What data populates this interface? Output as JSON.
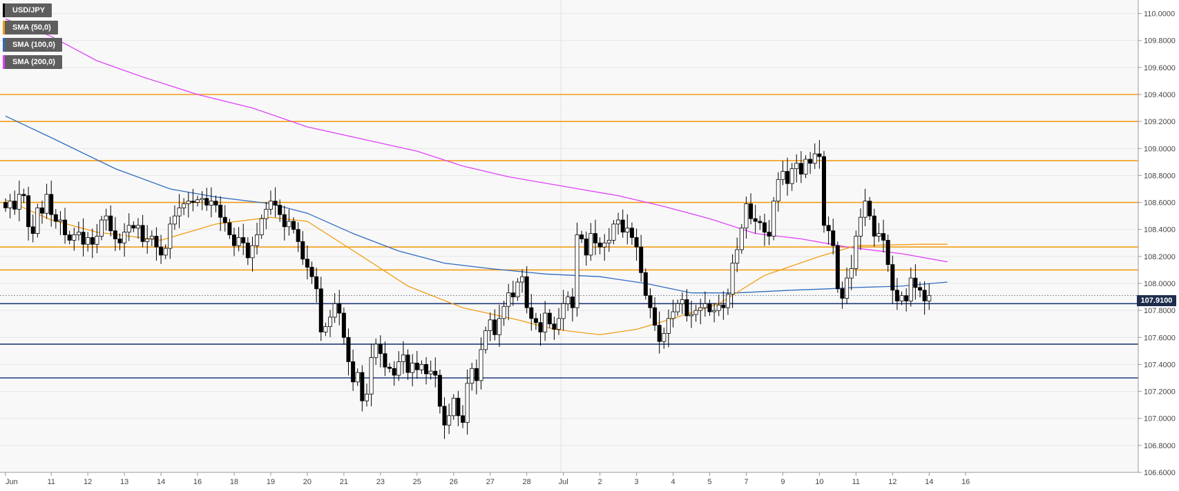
{
  "chart_data": {
    "type": "candlestick",
    "symbol": "USD/JPY",
    "ylim": [
      106.6,
      110.1
    ],
    "y_ticks": [
      "110.0000",
      "109.8000",
      "109.6000",
      "109.4000",
      "109.2000",
      "109.0000",
      "108.8000",
      "108.6000",
      "108.4000",
      "108.2000",
      "108.0000",
      "107.8000",
      "107.6000",
      "107.4000",
      "107.2000",
      "107.0000",
      "106.8000",
      "106.6000"
    ],
    "x_ticks": [
      {
        "label": "Jun",
        "bar": 0
      },
      {
        "label": "11",
        "bar": 10
      },
      {
        "label": "12",
        "bar": 18
      },
      {
        "label": "13",
        "bar": 26
      },
      {
        "label": "14",
        "bar": 34
      },
      {
        "label": "16",
        "bar": 42
      },
      {
        "label": "18",
        "bar": 50
      },
      {
        "label": "19",
        "bar": 58
      },
      {
        "label": "20",
        "bar": 66
      },
      {
        "label": "21",
        "bar": 74
      },
      {
        "label": "23",
        "bar": 82
      },
      {
        "label": "25",
        "bar": 90
      },
      {
        "label": "26",
        "bar": 98
      },
      {
        "label": "27",
        "bar": 106
      },
      {
        "label": "28",
        "bar": 114
      },
      {
        "label": "Jul",
        "bar": 122
      },
      {
        "label": "2",
        "bar": 130
      },
      {
        "label": "3",
        "bar": 138
      },
      {
        "label": "4",
        "bar": 146
      },
      {
        "label": "5",
        "bar": 154
      },
      {
        "label": "7",
        "bar": 162
      },
      {
        "label": "9",
        "bar": 170
      },
      {
        "label": "10",
        "bar": 178
      },
      {
        "label": "11",
        "bar": 186
      },
      {
        "label": "12",
        "bar": 194
      },
      {
        "label": "14",
        "bar": 202
      },
      {
        "label": "16",
        "bar": 210
      }
    ],
    "day_separators": [
      122
    ],
    "legend": [
      {
        "label": "USD/JPY",
        "color": "#000000"
      },
      {
        "label": "SMA (50,0)",
        "color": "#f39c12"
      },
      {
        "label": "SMA (100,0)",
        "color": "#2e6bbf"
      },
      {
        "label": "SMA (200,0)",
        "color": "#e040fb"
      }
    ],
    "last_price": "107.9100",
    "resistance_levels": [
      109.4,
      109.2,
      108.91,
      108.6,
      108.27,
      108.1
    ],
    "support_levels": [
      107.85,
      107.55,
      107.3
    ],
    "resistance_color": "#f39c12",
    "support_color": "#1f3a7a",
    "up_color": "#ffffff",
    "down_color": "#000000",
    "closes": [
      108.56,
      108.61,
      108.55,
      108.66,
      108.65,
      108.42,
      108.37,
      108.56,
      108.52,
      108.66,
      108.51,
      108.46,
      108.47,
      108.36,
      108.32,
      108.36,
      108.38,
      108.29,
      108.34,
      108.29,
      108.35,
      108.47,
      108.5,
      108.39,
      108.33,
      108.3,
      108.38,
      108.43,
      108.41,
      108.43,
      108.31,
      108.33,
      108.35,
      108.27,
      108.21,
      108.26,
      108.44,
      108.5,
      108.56,
      108.59,
      108.61,
      108.6,
      108.62,
      108.63,
      108.58,
      108.61,
      108.58,
      108.49,
      108.45,
      108.36,
      108.28,
      108.34,
      108.3,
      108.19,
      108.28,
      108.36,
      108.48,
      108.55,
      108.61,
      108.58,
      108.51,
      108.42,
      108.46,
      108.4,
      108.31,
      108.18,
      108.12,
      108.05,
      107.96,
      107.64,
      107.68,
      107.75,
      107.85,
      107.78,
      107.6,
      107.42,
      107.27,
      107.34,
      107.13,
      107.18,
      107.45,
      107.55,
      107.48,
      107.38,
      107.37,
      107.32,
      107.42,
      107.47,
      107.34,
      107.41,
      107.36,
      107.4,
      107.33,
      107.35,
      107.32,
      107.09,
      106.95,
      107.02,
      107.15,
      107.02,
      106.97,
      107.26,
      107.37,
      107.28,
      107.51,
      107.65,
      107.73,
      107.62,
      107.74,
      107.83,
      107.93,
      107.9,
      108.01,
      108.05,
      107.82,
      107.74,
      107.71,
      107.64,
      107.78,
      107.7,
      107.66,
      107.74,
      107.85,
      107.9,
      107.82,
      108.36,
      108.33,
      108.21,
      108.37,
      108.3,
      108.27,
      108.3,
      108.32,
      108.44,
      108.47,
      108.38,
      108.41,
      108.34,
      108.27,
      108.08,
      107.91,
      107.82,
      107.69,
      107.57,
      107.63,
      107.74,
      107.79,
      107.85,
      107.88,
      107.76,
      107.77,
      107.8,
      107.82,
      107.85,
      107.79,
      107.8,
      107.84,
      107.82,
      107.92,
      108.15,
      108.25,
      108.41,
      108.59,
      108.48,
      108.46,
      108.45,
      108.38,
      108.35,
      108.61,
      108.77,
      108.83,
      108.74,
      108.85,
      108.89,
      108.81,
      108.92,
      108.89,
      108.96,
      108.94,
      108.43,
      108.39,
      108.28,
      107.96,
      107.89,
      108.04,
      108.11,
      108.35,
      108.49,
      108.61,
      108.5,
      108.35,
      108.37,
      108.32,
      108.14,
      107.95,
      107.87,
      107.91,
      107.87,
      108.04,
      107.97,
      107.95,
      107.87,
      107.91
    ],
    "sma50": [
      [
        0,
        108.62
      ],
      [
        10,
        108.47
      ],
      [
        20,
        108.38
      ],
      [
        34,
        108.32
      ],
      [
        46,
        108.44
      ],
      [
        58,
        108.49
      ],
      [
        66,
        108.46
      ],
      [
        78,
        108.2
      ],
      [
        88,
        107.98
      ],
      [
        100,
        107.82
      ],
      [
        112,
        107.73
      ],
      [
        120,
        107.66
      ],
      [
        130,
        107.62
      ],
      [
        138,
        107.66
      ],
      [
        146,
        107.74
      ],
      [
        156,
        107.85
      ],
      [
        166,
        108.06
      ],
      [
        178,
        108.2
      ],
      [
        186,
        108.28
      ],
      [
        200,
        108.29
      ],
      [
        206,
        108.29
      ]
    ],
    "sma100": [
      [
        0,
        109.24
      ],
      [
        10,
        109.08
      ],
      [
        24,
        108.85
      ],
      [
        36,
        108.7
      ],
      [
        46,
        108.64
      ],
      [
        58,
        108.59
      ],
      [
        66,
        108.52
      ],
      [
        76,
        108.37
      ],
      [
        86,
        108.24
      ],
      [
        96,
        108.15
      ],
      [
        106,
        108.11
      ],
      [
        118,
        108.07
      ],
      [
        130,
        108.05
      ],
      [
        140,
        108.0
      ],
      [
        150,
        107.93
      ],
      [
        160,
        107.93
      ],
      [
        172,
        107.95
      ],
      [
        180,
        107.96
      ],
      [
        186,
        107.97
      ],
      [
        196,
        107.98
      ],
      [
        206,
        108.01
      ]
    ],
    "sma200": [
      [
        0,
        109.96
      ],
      [
        10,
        109.83
      ],
      [
        20,
        109.65
      ],
      [
        30,
        109.53
      ],
      [
        42,
        109.4
      ],
      [
        54,
        109.3
      ],
      [
        66,
        109.16
      ],
      [
        78,
        109.07
      ],
      [
        90,
        108.98
      ],
      [
        100,
        108.87
      ],
      [
        110,
        108.79
      ],
      [
        122,
        108.72
      ],
      [
        134,
        108.65
      ],
      [
        144,
        108.57
      ],
      [
        154,
        108.48
      ],
      [
        164,
        108.37
      ],
      [
        174,
        108.33
      ],
      [
        184,
        108.27
      ],
      [
        196,
        108.22
      ],
      [
        206,
        108.16
      ]
    ]
  }
}
